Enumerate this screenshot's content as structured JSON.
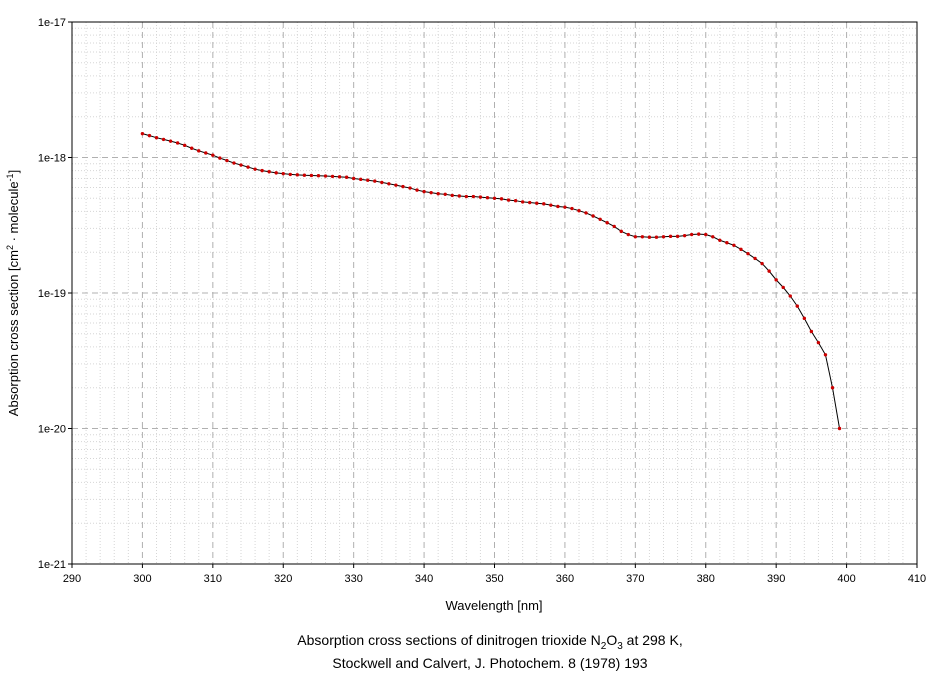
{
  "chart_data": {
    "type": "line",
    "xlabel": "Wavelength [nm]",
    "ylabel_main": "Absorption cross section [cm",
    "ylabel_sup1": "2",
    "ylabel_mid": " · molecule",
    "ylabel_sup2": "-1",
    "ylabel_end": "]",
    "xlim": [
      290,
      410
    ],
    "x_ticks": [
      290,
      300,
      310,
      320,
      330,
      340,
      350,
      360,
      370,
      380,
      390,
      400,
      410
    ],
    "y_scale": "log",
    "ylim": [
      1e-21,
      1e-17
    ],
    "y_ticks": [
      {
        "value": 1e-21,
        "label": "1e-21"
      },
      {
        "value": 1e-20,
        "label": "1e-20"
      },
      {
        "value": 1e-19,
        "label": "1e-19"
      },
      {
        "value": 1e-18,
        "label": "1e-18"
      },
      {
        "value": 1e-17,
        "label": "1e-17"
      }
    ],
    "grid": true,
    "line_color": "#000000",
    "marker_color": "#cc0000",
    "x": [
      300,
      301,
      302,
      303,
      304,
      305,
      306,
      307,
      308,
      309,
      310,
      311,
      312,
      313,
      314,
      315,
      316,
      317,
      318,
      319,
      320,
      321,
      322,
      323,
      324,
      325,
      326,
      327,
      328,
      329,
      330,
      331,
      332,
      333,
      334,
      335,
      336,
      337,
      338,
      339,
      340,
      341,
      342,
      343,
      344,
      345,
      346,
      347,
      348,
      349,
      350,
      351,
      352,
      353,
      354,
      355,
      356,
      357,
      358,
      359,
      360,
      361,
      362,
      363,
      364,
      365,
      366,
      367,
      368,
      369,
      370,
      371,
      372,
      373,
      374,
      375,
      376,
      377,
      378,
      379,
      380,
      381,
      382,
      383,
      384,
      385,
      386,
      387,
      388,
      389,
      390,
      391,
      392,
      393,
      394,
      395,
      396,
      397,
      398,
      399
    ],
    "y": [
      1.5e-18,
      1.45e-18,
      1.4e-18,
      1.36e-18,
      1.32e-18,
      1.28e-18,
      1.23e-18,
      1.17e-18,
      1.12e-18,
      1.08e-18,
      1.04e-18,
      9.9e-19,
      9.5e-19,
      9.1e-19,
      8.8e-19,
      8.5e-19,
      8.2e-19,
      8e-19,
      7.85e-19,
      7.7e-19,
      7.6e-19,
      7.5e-19,
      7.45e-19,
      7.4e-19,
      7.37e-19,
      7.34e-19,
      7.3e-19,
      7.25e-19,
      7.2e-19,
      7.15e-19,
      7e-19,
      6.9e-19,
      6.8e-19,
      6.7e-19,
      6.55e-19,
      6.4e-19,
      6.25e-19,
      6.1e-19,
      5.95e-19,
      5.75e-19,
      5.6e-19,
      5.5e-19,
      5.4e-19,
      5.35e-19,
      5.25e-19,
      5.2e-19,
      5.15e-19,
      5.15e-19,
      5.1e-19,
      5.05e-19,
      5e-19,
      4.95e-19,
      4.85e-19,
      4.8e-19,
      4.7e-19,
      4.65e-19,
      4.6e-19,
      4.55e-19,
      4.45e-19,
      4.35e-19,
      4.3e-19,
      4.2e-19,
      4.05e-19,
      3.9e-19,
      3.7e-19,
      3.5e-19,
      3.3e-19,
      3.1e-19,
      2.85e-19,
      2.7e-19,
      2.6e-19,
      2.6e-19,
      2.58e-19,
      2.58e-19,
      2.6e-19,
      2.62e-19,
      2.62e-19,
      2.65e-19,
      2.7e-19,
      2.72e-19,
      2.7e-19,
      2.6e-19,
      2.45e-19,
      2.35e-19,
      2.25e-19,
      2.1e-19,
      1.95e-19,
      1.8e-19,
      1.65e-19,
      1.45e-19,
      1.25e-19,
      1.1e-19,
      9.5e-20,
      8e-20,
      6.5e-20,
      5.2e-20,
      4.3e-20,
      3.5e-20,
      2e-20,
      1e-20
    ]
  },
  "caption": {
    "line1_pre": "Absorption cross sections of dinitrogen trioxide N",
    "line1_sub1": "2",
    "line1_mid": "O",
    "line1_sub2": "3",
    "line1_post": " at 298 K,",
    "line2": "Stockwell and Calvert, J. Photochem. 8 (1978) 193"
  }
}
